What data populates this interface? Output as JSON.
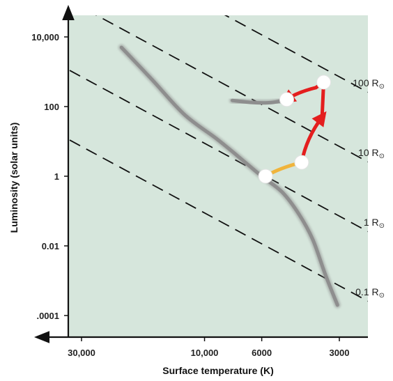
{
  "colors": {
    "plot_background": "#d6e6dc",
    "main_sequence": "#8e8e8e",
    "radius_lines": "#111111",
    "track_early": "#f0b43c",
    "track_late": "#e41e1e",
    "markers": "#ffffff"
  },
  "chart_data": {
    "type": "line",
    "title": "",
    "xlabel": "Surface temperature (K)",
    "ylabel": "Luminosity (solar units)",
    "x_scale": "log",
    "x_reversed": true,
    "y_scale": "log",
    "x_ticks": [
      {
        "value": 30000,
        "label": "30,000"
      },
      {
        "value": 10000,
        "label": "10,000"
      },
      {
        "value": 6000,
        "label": "6000"
      },
      {
        "value": 3000,
        "label": "3000"
      }
    ],
    "y_ticks": [
      {
        "value": 10000,
        "label": "10,000"
      },
      {
        "value": 100,
        "label": "100"
      },
      {
        "value": 1,
        "label": "1"
      },
      {
        "value": 0.01,
        "label": "0.01"
      },
      {
        "value": 0.0001,
        "label": ".0001"
      }
    ],
    "radius_lines": [
      {
        "label": "100 R",
        "symbol": "⊙",
        "radius_rsun": 100
      },
      {
        "label": "10 R",
        "symbol": "⊙",
        "radius_rsun": 10
      },
      {
        "label": "1 R",
        "symbol": "⊙",
        "radius_rsun": 1
      },
      {
        "label": "0.1 R",
        "symbol": "⊙",
        "radius_rsun": 0.1
      }
    ],
    "series": [
      {
        "id": "main_sequence",
        "points": [
          [
            21000,
            5000
          ],
          [
            16000,
            600
          ],
          [
            12000,
            60
          ],
          [
            9000,
            12
          ],
          [
            7500,
            4
          ],
          [
            6000,
            1
          ],
          [
            5000,
            0.35
          ],
          [
            4300,
            0.08
          ],
          [
            3800,
            0.015
          ],
          [
            3400,
            0.0015
          ],
          [
            3050,
            0.0002
          ]
        ]
      },
      {
        "id": "giant_branch",
        "points": [
          [
            7800,
            150
          ],
          [
            6500,
            130
          ],
          [
            5500,
            130
          ],
          [
            4800,
            160
          ]
        ]
      }
    ],
    "evolution_track": [
      {
        "from": [
          5800,
          1
        ],
        "to": [
          4200,
          2.5
        ]
      },
      {
        "from": [
          4200,
          2.5
        ],
        "to": [
          3500,
          50
        ]
      },
      {
        "from": [
          3500,
          50
        ],
        "to": [
          3450,
          500
        ]
      },
      {
        "from": [
          3450,
          500
        ],
        "to": [
          3700,
          350
        ]
      },
      {
        "from": [
          3700,
          350
        ],
        "to": [
          4800,
          160
        ]
      }
    ],
    "markers": [
      {
        "x": 5800,
        "y": 1
      },
      {
        "x": 4200,
        "y": 2.5
      },
      {
        "x": 4800,
        "y": 160
      },
      {
        "x": 3450,
        "y": 500
      }
    ]
  }
}
